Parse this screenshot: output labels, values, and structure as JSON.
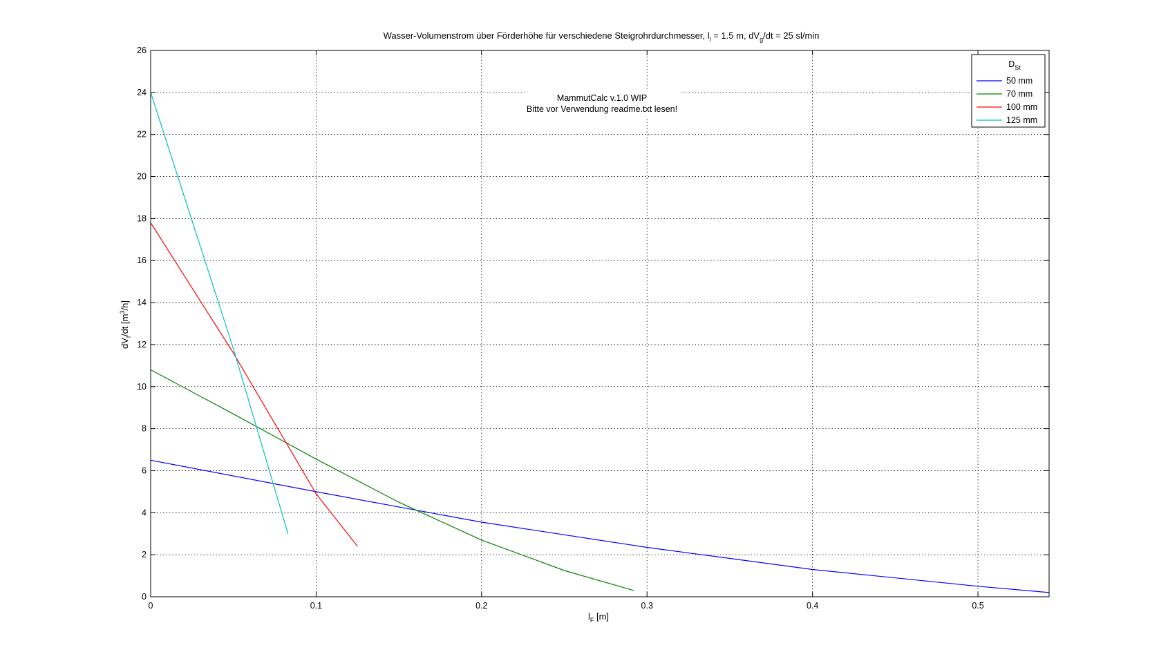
{
  "chart_data": {
    "type": "line",
    "title": {
      "part1": "Wasser-Volumenstrom über Förderhöhe für verschiedene Steigrohrdurchmesser, l",
      "sub1": "l",
      "part2": " = 1.5 m, dV",
      "sub2": "g",
      "part3": "/dt = 25 sl/min"
    },
    "xlabel": {
      "main": "l",
      "sub": "F",
      "unit": " [m]"
    },
    "ylabel": {
      "main": "dV",
      "sub": "l",
      "mid": "/dt [m",
      "sup": "3",
      "end": "/h]"
    },
    "xlim": [
      0,
      0.543
    ],
    "ylim": [
      0,
      26
    ],
    "xticks": [
      0,
      0.1,
      0.2,
      0.3,
      0.4,
      0.5
    ],
    "xtick_labels": [
      "0",
      "0.1",
      "0.2",
      "0.3",
      "0.4",
      "0.5"
    ],
    "yticks": [
      0,
      2,
      4,
      6,
      8,
      10,
      12,
      14,
      16,
      18,
      20,
      22,
      24,
      26
    ],
    "ytick_labels": [
      "0",
      "2",
      "4",
      "6",
      "8",
      "10",
      "12",
      "14",
      "16",
      "18",
      "20",
      "22",
      "24",
      "26"
    ],
    "grid": true,
    "legend": {
      "placement": "top-right",
      "title_main": "D",
      "title_sub": "St"
    },
    "annotation": {
      "line1": "MammutCalc v.1.0 WIP",
      "line2": "Bitte vor Verwendung readme.txt lesen!"
    },
    "series": [
      {
        "name": "50 mm",
        "color": "#0000ff",
        "x": [
          0,
          0.1,
          0.2,
          0.3,
          0.4,
          0.5,
          0.543
        ],
        "y": [
          6.5,
          5.0,
          3.55,
          2.35,
          1.3,
          0.5,
          0.2
        ]
      },
      {
        "name": "70 mm",
        "color": "#008000",
        "x": [
          0,
          0.05,
          0.1,
          0.15,
          0.2,
          0.25,
          0.292
        ],
        "y": [
          10.8,
          8.7,
          6.55,
          4.5,
          2.7,
          1.25,
          0.3
        ]
      },
      {
        "name": "100 mm",
        "color": "#ff0000",
        "x": [
          0,
          0.05,
          0.1,
          0.125
        ],
        "y": [
          17.8,
          11.6,
          4.9,
          2.4
        ]
      },
      {
        "name": "125 mm",
        "color": "#00bfbf",
        "x": [
          0,
          0.05,
          0.083
        ],
        "y": [
          24.0,
          11.8,
          3.0
        ]
      }
    ]
  }
}
